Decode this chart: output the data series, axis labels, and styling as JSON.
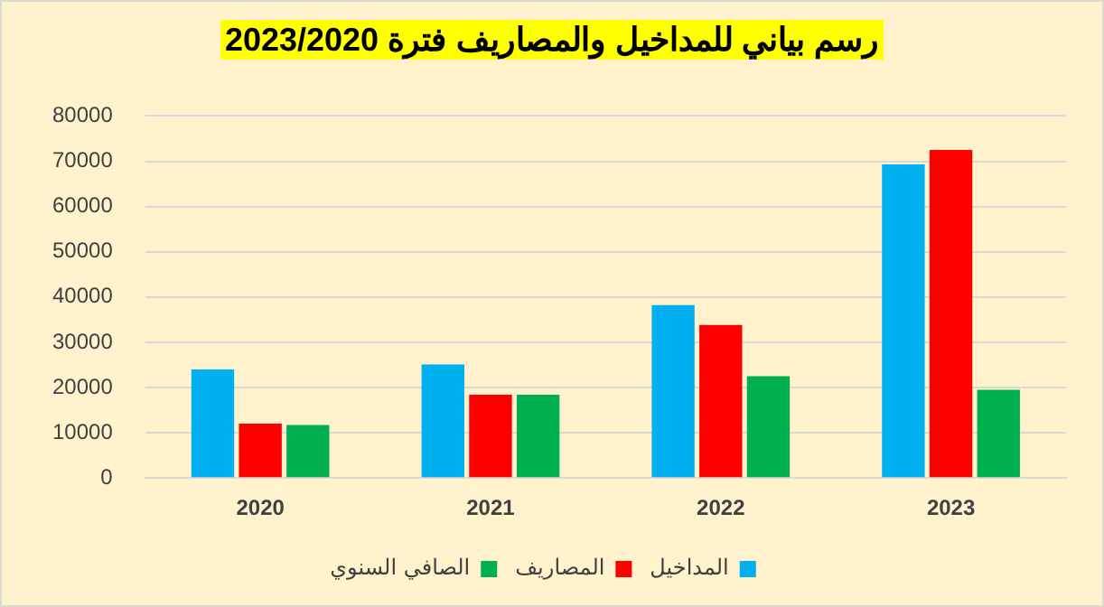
{
  "chart_data": {
    "type": "bar",
    "title": "رسم بياني للمداخيل والمصاريف فترة 2023/2020",
    "categories": [
      "2020",
      "2021",
      "2022",
      "2023"
    ],
    "series": [
      {
        "name": "المداخيل",
        "color": "#00b0f0",
        "values": [
          24000,
          25100,
          38200,
          69300
        ]
      },
      {
        "name": "المصاريف",
        "color": "#ff0000",
        "values": [
          12000,
          18400,
          33800,
          72500
        ]
      },
      {
        "name": "الصافي السنوي",
        "color": "#00b050",
        "values": [
          11700,
          18400,
          22500,
          19500
        ]
      }
    ],
    "ylim": [
      0,
      80000
    ],
    "yticks": [
      0,
      10000,
      20000,
      30000,
      40000,
      50000,
      60000,
      70000,
      80000
    ],
    "grid": "y",
    "legend": "bottom"
  }
}
